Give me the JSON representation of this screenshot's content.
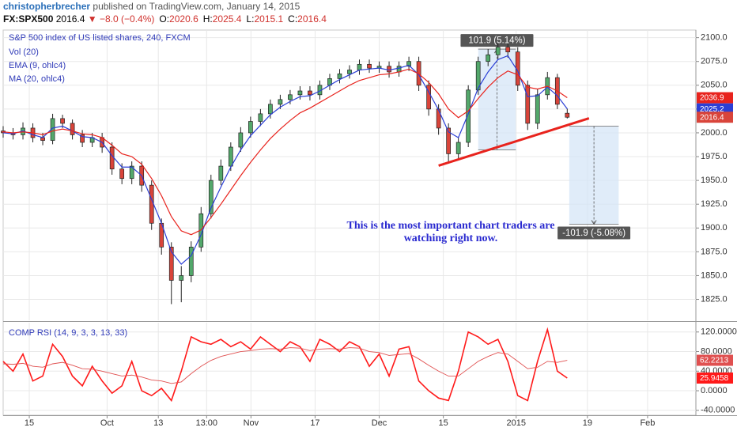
{
  "header": {
    "author": "christopherbrecher",
    "published": "published on TradingView.com, January 14, 2015",
    "symbol": "FX:SPX500",
    "last": 2016.4,
    "arrow": "▼",
    "change": "−8.0 (−0.4%)",
    "fields": [
      {
        "label": "O:",
        "value": 2020.6
      },
      {
        "label": "H:",
        "value": 2025.4
      },
      {
        "label": "L:",
        "value": 2015.1
      },
      {
        "label": "C:",
        "value": 2016.4
      }
    ]
  },
  "chart_data": [
    {
      "type": "candlestick",
      "title": "S&P 500 index of US listed shares, 240, FXCM",
      "indicators": [
        "Vol (20)"
      ],
      "x": [
        0,
        1,
        2,
        3,
        4,
        5,
        6,
        7,
        8,
        9,
        10,
        11,
        12,
        13,
        14,
        15,
        16,
        17,
        18,
        19,
        20,
        21,
        22,
        23,
        24,
        25,
        26,
        27,
        28,
        29,
        30,
        31,
        32,
        33,
        34,
        35,
        36,
        37,
        38,
        39,
        40,
        41,
        42,
        43,
        44,
        45,
        46,
        47,
        48,
        49,
        50,
        51,
        52,
        53,
        54,
        55,
        56,
        57
      ],
      "open": [
        2002,
        2000,
        1998,
        2005,
        1995,
        1992,
        2015,
        2010,
        1998,
        1990,
        1995,
        1985,
        1962,
        1952,
        1965,
        1945,
        1905,
        1880,
        1845,
        1850,
        1880,
        1915,
        1950,
        1965,
        1985,
        2000,
        2012,
        2020,
        2030,
        2035,
        2040,
        2044,
        2040,
        2050,
        2057,
        2062,
        2066,
        2072,
        2068,
        2070,
        2064,
        2070,
        2075,
        2050,
        2025,
        2005,
        1978,
        1990,
        2045,
        2075,
        2082,
        2090,
        2085,
        2050,
        2010,
        2040,
        2058,
        2020.6
      ],
      "high": [
        2007,
        2005,
        2011,
        2010,
        2000,
        2020,
        2019,
        2014,
        2003,
        2000,
        2000,
        1990,
        1968,
        1970,
        1970,
        1950,
        1910,
        1885,
        1860,
        1886,
        1922,
        1956,
        1972,
        1990,
        2006,
        2017,
        2025,
        2035,
        2040,
        2045,
        2049,
        2049,
        2055,
        2062,
        2067,
        2071,
        2077,
        2077,
        2075,
        2075,
        2075,
        2080,
        2080,
        2055,
        2030,
        2010,
        1996,
        2050,
        2080,
        2088,
        2094,
        2094,
        2090,
        2055,
        2046,
        2064,
        2062,
        2025.4
      ],
      "low": [
        1995,
        1993,
        1993,
        1990,
        1987,
        1988,
        2005,
        1993,
        1985,
        1985,
        1979,
        1956,
        1946,
        1946,
        1938,
        1898,
        1872,
        1820,
        1822,
        1843,
        1875,
        1910,
        1945,
        1960,
        1980,
        1995,
        2007,
        2015,
        2025,
        2030,
        2035,
        2034,
        2035,
        2045,
        2052,
        2057,
        2061,
        2063,
        2063,
        2058,
        2059,
        2065,
        2044,
        2018,
        1998,
        1970,
        1972,
        1985,
        2040,
        2070,
        2077,
        2079,
        2044,
        2003,
        2004,
        2035,
        2025,
        2015.1
      ],
      "close": [
        2000,
        1998,
        2005,
        1995,
        1992,
        2015,
        2010,
        1998,
        1990,
        1995,
        1985,
        1962,
        1952,
        1965,
        1945,
        1905,
        1880,
        1845,
        1850,
        1880,
        1915,
        1950,
        1965,
        1985,
        2000,
        2012,
        2020,
        2030,
        2035,
        2040,
        2044,
        2040,
        2050,
        2057,
        2062,
        2066,
        2072,
        2068,
        2070,
        2064,
        2070,
        2075,
        2050,
        2025,
        2005,
        1978,
        1990,
        2045,
        2075,
        2082,
        2090,
        2085,
        2050,
        2010,
        2040,
        2058,
        2030,
        2016.4
      ],
      "up_color": "#53a86b",
      "down_color": "#d9443a",
      "close_color": "#d9443a",
      "series": [
        {
          "name": "EMA (9, ohlc4)",
          "color": "#2b3fd6",
          "values": [
            2000,
            1999,
            2002,
            1998,
            1995,
            2005,
            2007,
            2002,
            1996,
            1995,
            1990,
            1976,
            1964,
            1964,
            1955,
            1930,
            1905,
            1875,
            1862,
            1871,
            1893,
            1921,
            1943,
            1964,
            1982,
            1997,
            2008,
            2019,
            2027,
            2033,
            2038,
            2039,
            2044,
            2050,
            2056,
            2061,
            2066,
            2067,
            2068,
            2066,
            2068,
            2071,
            2061,
            2043,
            2024,
            2001,
            1995,
            2020,
            2047,
            2064,
            2077,
            2081,
            2065,
            2038,
            2039,
            2048,
            2039,
            2025.2
          ]
        },
        {
          "name": "MA (20, ohlc4)",
          "color": "#e8231d",
          "values": [
            2001,
            2000,
            2001,
            2000,
            1998,
            2002,
            2004,
            2002,
            1999,
            1998,
            1995,
            1987,
            1978,
            1975,
            1967,
            1952,
            1934,
            1912,
            1897,
            1893,
            1898,
            1911,
            1925,
            1940,
            1955,
            1969,
            1982,
            1994,
            2004,
            2013,
            2021,
            2026,
            2032,
            2038,
            2044,
            2050,
            2055,
            2058,
            2061,
            2062,
            2064,
            2067,
            2062,
            2053,
            2041,
            2025,
            2016,
            2023,
            2036,
            2048,
            2058,
            2065,
            2061,
            2048,
            2046,
            2049,
            2044,
            2036.9
          ]
        }
      ],
      "legend_order": [
        "EMA (9, ohlc4)",
        "MA (20, ohlc4)"
      ],
      "xlim": [
        0,
        70
      ],
      "ylim": [
        1803,
        2108
      ],
      "yticks": [
        {
          "value": 1825,
          "label": "1825.0"
        },
        {
          "value": 1850,
          "label": "1850.0"
        },
        {
          "value": 1875,
          "label": "1875.0"
        },
        {
          "value": 1900,
          "label": "1900.0"
        },
        {
          "value": 1925,
          "label": "1925.0"
        },
        {
          "value": 1950,
          "label": "1950.0"
        },
        {
          "value": 1975,
          "label": "1975.0"
        },
        {
          "value": 2000,
          "label": "2000.0"
        },
        {
          "value": 2025,
          "label": "2025.0"
        },
        {
          "value": 2050,
          "label": "2050.0"
        },
        {
          "value": 2075,
          "label": "2075.0"
        },
        {
          "value": 2100,
          "label": "2100.0"
        }
      ],
      "grid": true,
      "trendline": {
        "color": "#e8231d",
        "x": [
          44,
          59.2
        ],
        "y": [
          1965.5,
          2015.3
        ]
      },
      "measures": [
        {
          "label": "101.9 (5.14%)",
          "x": [
            48,
            51.8
          ],
          "y": [
            1982,
            2088
          ]
        },
        {
          "label": "-101.9 (-5.08%)",
          "x": [
            57.2,
            62.2
          ],
          "y": [
            2007,
            1904
          ]
        }
      ],
      "annotation": [
        "This is the most important chart traders are",
        "watching right now."
      ]
    },
    {
      "type": "line",
      "title": "COMP RSI (14, 9, 3, 3, 13, 33)",
      "x": [
        0,
        1,
        2,
        3,
        4,
        5,
        6,
        7,
        8,
        9,
        10,
        11,
        12,
        13,
        14,
        15,
        16,
        17,
        18,
        19,
        20,
        21,
        22,
        23,
        24,
        25,
        26,
        27,
        28,
        29,
        30,
        31,
        32,
        33,
        34,
        35,
        36,
        37,
        38,
        39,
        40,
        41,
        42,
        43,
        44,
        45,
        46,
        47,
        48,
        49,
        50,
        51,
        52,
        53,
        54,
        55,
        56,
        57
      ],
      "series": [
        {
          "color": "#ff1a1a",
          "width": 1.6,
          "values": [
            60,
            40,
            75,
            20,
            30,
            95,
            70,
            30,
            10,
            50,
            20,
            -5,
            10,
            60,
            0,
            -10,
            5,
            -20,
            40,
            110,
            100,
            95,
            105,
            90,
            100,
            85,
            110,
            95,
            80,
            100,
            90,
            60,
            105,
            95,
            80,
            100,
            90,
            50,
            75,
            30,
            85,
            90,
            20,
            0,
            -15,
            -20,
            40,
            120,
            110,
            95,
            105,
            60,
            -10,
            -20,
            60,
            125,
            40,
            25.9458
          ]
        },
        {
          "color": "#e05050",
          "width": 0.9,
          "values": [
            55,
            54,
            56,
            50,
            48,
            55,
            58,
            52,
            45,
            44,
            40,
            35,
            30,
            32,
            28,
            22,
            20,
            15,
            18,
            35,
            50,
            62,
            70,
            75,
            80,
            82,
            85,
            86,
            85,
            88,
            87,
            82,
            85,
            86,
            85,
            88,
            87,
            80,
            78,
            72,
            74,
            76,
            65,
            52,
            40,
            30,
            30,
            45,
            60,
            70,
            78,
            75,
            60,
            45,
            48,
            60,
            58,
            62.2213
          ]
        }
      ],
      "xlim": [
        0,
        70
      ],
      "ylim": [
        -50,
        139
      ],
      "yticks": [
        {
          "value": -40,
          "label": "-40.0000"
        },
        {
          "value": 0,
          "label": "0.0000"
        },
        {
          "value": 40,
          "label": "40.0000"
        },
        {
          "value": 80,
          "label": "80.0000"
        },
        {
          "value": 120,
          "label": "120.0000"
        }
      ],
      "xticks": [
        {
          "value": 2.64,
          "label": "15"
        },
        {
          "value": 10.5,
          "label": "Oct"
        },
        {
          "value": 15.68,
          "label": "13"
        },
        {
          "value": 20.56,
          "label": "13:00"
        },
        {
          "value": 25.04,
          "label": "Nov"
        },
        {
          "value": 31.52,
          "label": "17"
        },
        {
          "value": 38,
          "label": "Dec"
        },
        {
          "value": 44.48,
          "label": "15"
        },
        {
          "value": 51.84,
          "label": "2015"
        },
        {
          "value": 59.04,
          "label": "19"
        },
        {
          "value": 65.12,
          "label": "Feb"
        }
      ],
      "grid": true
    }
  ]
}
